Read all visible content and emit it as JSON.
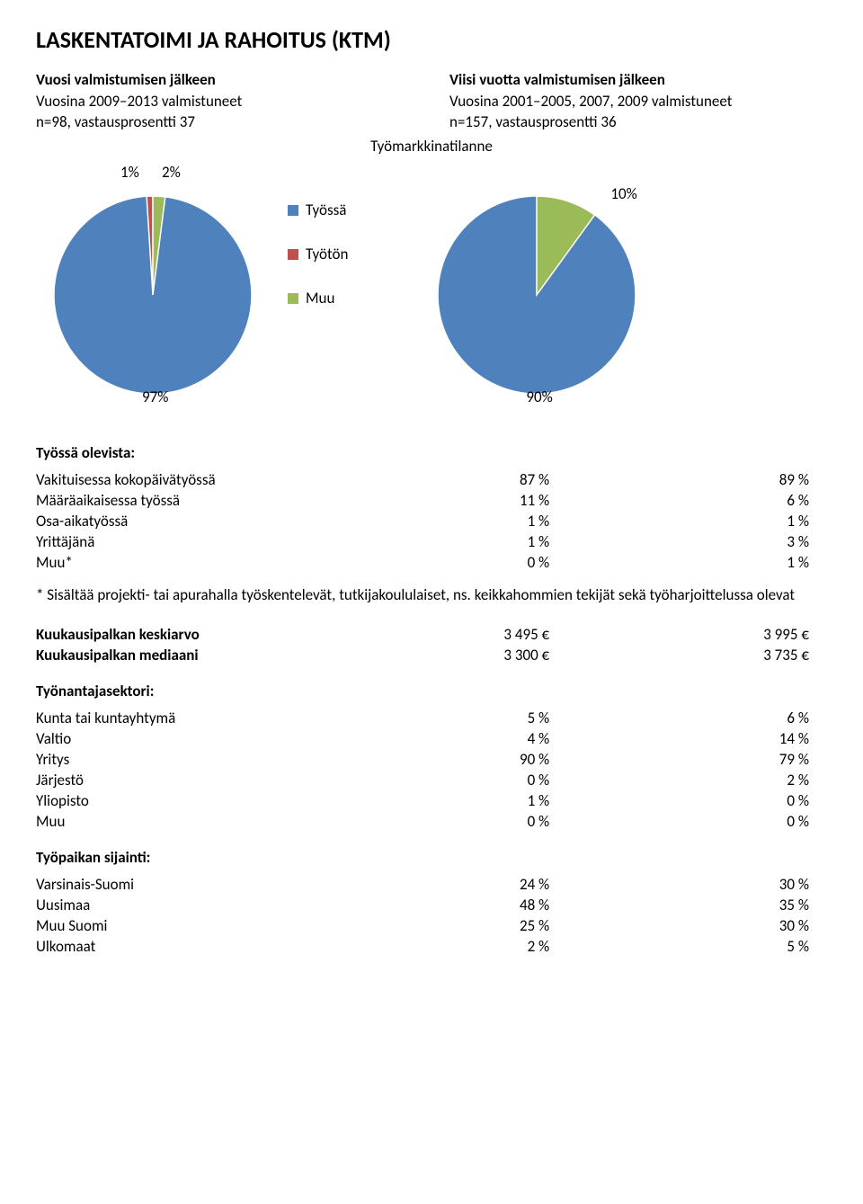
{
  "title": "LASKENTATOIMI JA RAHOITUS (KTM)",
  "section_label": "Työmarkkinatilanne",
  "left_col": {
    "heading": "Vuosi valmistumisen jälkeen",
    "line1": "Vuosina 2009–2013 valmistuneet",
    "line2": "n=98, vastausprosentti 37"
  },
  "right_col": {
    "heading": "Viisi vuotta valmistumisen jälkeen",
    "line1": "Vuosina 2001–2005, 2007, 2009 valmistuneet",
    "line2": "n=157, vastausprosentti 36"
  },
  "legend": {
    "items": [
      {
        "label": "Työssä",
        "color": "#4f81bd"
      },
      {
        "label": "Työtön",
        "color": "#c0504d"
      },
      {
        "label": "Muu",
        "color": "#9bbb59"
      }
    ]
  },
  "pie_left": {
    "colors": {
      "tyossa": "#4f81bd",
      "tyoton": "#c0504d",
      "muu": "#9bbb59",
      "stroke": "#ffffff"
    },
    "labels": {
      "p1": "1%",
      "p2": "2%",
      "main": "97%"
    },
    "fontsize": 17
  },
  "pie_right": {
    "colors": {
      "tyossa": "#4f81bd",
      "muu": "#9bbb59",
      "stroke": "#ffffff"
    },
    "labels": {
      "p10": "10%",
      "main": "90%"
    },
    "fontsize": 17
  },
  "tyossa_olevista": {
    "heading": "Työssä olevista:",
    "rows": [
      {
        "label": "Vakituisessa kokopäivätyössä",
        "v1": "87 %",
        "v2": "89 %"
      },
      {
        "label": "Määräaikaisessa työssä",
        "v1": "11 %",
        "v2": "6 %"
      },
      {
        "label": "Osa-aikatyössä",
        "v1": "1 %",
        "v2": "1 %"
      },
      {
        "label": "Yrittäjänä",
        "v1": "1 %",
        "v2": "3 %"
      },
      {
        "label": "Muu*",
        "v1": "0 %",
        "v2": "1 %"
      }
    ]
  },
  "footnote": "* Sisältää projekti- tai apurahalla työskentelevät, tutkijakoululaiset, ns. keikkahommien tekijät sekä työharjoittelussa olevat",
  "salary": {
    "rows": [
      {
        "label": "Kuukausipalkan keskiarvo",
        "v1": "3 495 €",
        "v2": "3 995 €"
      },
      {
        "label": "Kuukausipalkan mediaani",
        "v1": "3 300 €",
        "v2": "3 735 €"
      }
    ]
  },
  "tyonantajasektori": {
    "heading": "Työnantajasektori:",
    "rows": [
      {
        "label": "Kunta tai kuntayhtymä",
        "v1": "5 %",
        "v2": "6 %"
      },
      {
        "label": "Valtio",
        "v1": "4 %",
        "v2": "14 %"
      },
      {
        "label": "Yritys",
        "v1": "90 %",
        "v2": "79 %"
      },
      {
        "label": "Järjestö",
        "v1": "0 %",
        "v2": "2 %"
      },
      {
        "label": "Yliopisto",
        "v1": "1 %",
        "v2": "0 %"
      },
      {
        "label": "Muu",
        "v1": "0 %",
        "v2": "0 %"
      }
    ]
  },
  "sijainti": {
    "heading": "Työpaikan sijainti:",
    "rows": [
      {
        "label": "Varsinais-Suomi",
        "v1": "24 %",
        "v2": "30 %"
      },
      {
        "label": "Uusimaa",
        "v1": "48 %",
        "v2": "35 %"
      },
      {
        "label": "Muu Suomi",
        "v1": "25 %",
        "v2": "30 %"
      },
      {
        "label": "Ulkomaat",
        "v1": "2 %",
        "v2": "5 %"
      }
    ]
  }
}
